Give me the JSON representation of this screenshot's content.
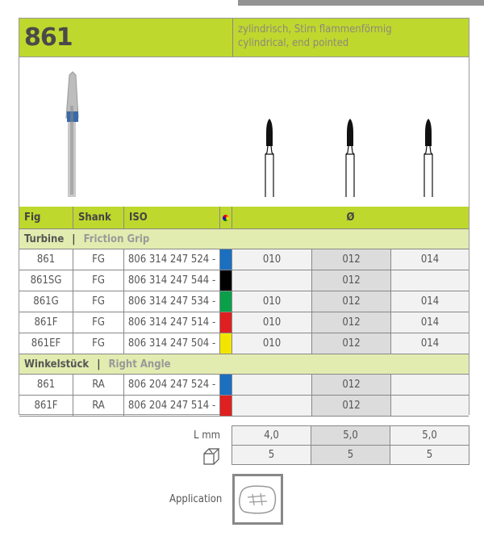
{
  "figure": "861",
  "description": {
    "de": "zylindrisch, Stirn flammenförmig",
    "en": "cylindrical, end pointed"
  },
  "columns": {
    "fig": "Fig",
    "shank": "Shank",
    "iso": "ISO",
    "diameter": "Ø"
  },
  "sections": [
    {
      "title": "Turbine",
      "subtitle": "Friction Grip",
      "separator": "|",
      "rows": [
        {
          "fig": "861",
          "shank": "FG",
          "iso": "806 314 247 524 -",
          "color": "#1a6fc0",
          "d": [
            "010",
            "012",
            "014"
          ]
        },
        {
          "fig": "861SG",
          "shank": "FG",
          "iso": "806 314 247 544 -",
          "color": "#000000",
          "d": [
            "",
            "012",
            ""
          ]
        },
        {
          "fig": "861G",
          "shank": "FG",
          "iso": "806 314 247 534 -",
          "color": "#0aa04a",
          "d": [
            "010",
            "012",
            "014"
          ]
        },
        {
          "fig": "861F",
          "shank": "FG",
          "iso": "806 314 247 514 -",
          "color": "#e02020",
          "d": [
            "010",
            "012",
            "014"
          ]
        },
        {
          "fig": "861EF",
          "shank": "FG",
          "iso": "806 314 247 504 -",
          "color": "#f2e600",
          "d": [
            "010",
            "012",
            "014"
          ]
        }
      ]
    },
    {
      "title": "Winkelstück",
      "subtitle": "Right Angle",
      "separator": "|",
      "rows": [
        {
          "fig": "861",
          "shank": "RA",
          "iso": "806 204 247 524 -",
          "color": "#1a6fc0",
          "d": [
            "",
            "012",
            ""
          ]
        },
        {
          "fig": "861F",
          "shank": "RA",
          "iso": "806 204 247 514 -",
          "color": "#e02020",
          "d": [
            "",
            "012",
            ""
          ]
        }
      ]
    }
  ],
  "length": {
    "label": "L mm",
    "values": [
      "4,0",
      "5,0",
      "5,0"
    ]
  },
  "pack": {
    "icon": "box-icon",
    "values": [
      "5",
      "5",
      "5"
    ]
  },
  "application": {
    "label": "Application",
    "icon": "tooth-cavity-icon"
  },
  "colors": {
    "accent": "#bfd82d",
    "section": "#e3ecb0"
  }
}
